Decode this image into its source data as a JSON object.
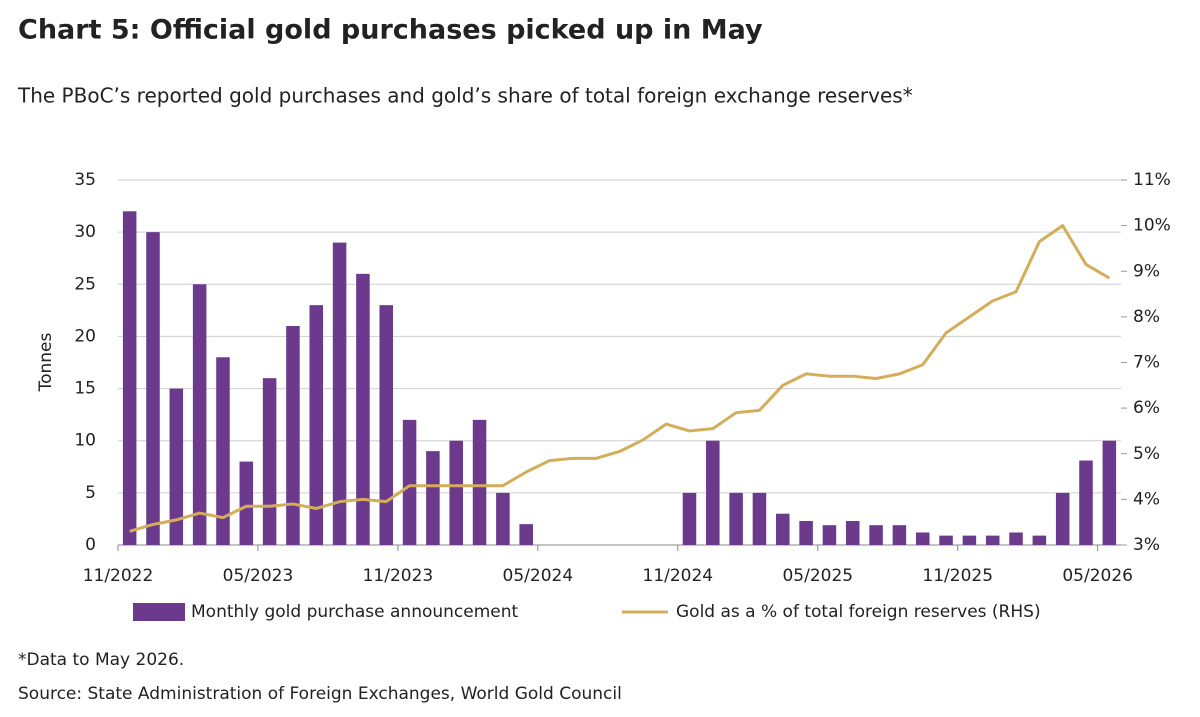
{
  "chart_data": {
    "type": "bar_line",
    "title": "Chart 5: Official gold purchases picked up in May",
    "subtitle": "The PBoC’s reported gold purchases and gold’s share of total foreign exchange reserves*",
    "y_label": "Tonnes",
    "footnote": "*Data to May 2026.",
    "source": "Source: State Administration of Foreign Exchanges, World Gold Council",
    "categories": [
      "11/2022",
      null,
      null,
      null,
      null,
      null,
      "05/2023",
      null,
      null,
      null,
      null,
      null,
      "11/2023",
      null,
      null,
      null,
      null,
      null,
      "05/2024",
      null,
      null,
      null,
      null,
      null,
      "11/2024",
      null,
      null,
      null,
      null,
      null,
      "05/2025",
      null,
      null,
      null,
      null,
      null,
      "11/2025",
      null,
      null,
      null,
      null,
      null,
      "05/2026"
    ],
    "series": [
      {
        "name": "Monthly gold purchase announcement",
        "type": "bar",
        "color": "#6b3a8c",
        "values": [
          32,
          30,
          15,
          25,
          18,
          8,
          16,
          21,
          23,
          29,
          26,
          23,
          12,
          9,
          10,
          12,
          5,
          2,
          0,
          0,
          0,
          0,
          0,
          0,
          5,
          10,
          5,
          5,
          3,
          2.3,
          1.9,
          2.3,
          1.9,
          1.9,
          1.2,
          0.9,
          0.9,
          0.9,
          1.2,
          0.9,
          5,
          8.1,
          10
        ]
      },
      {
        "name": "Gold as a % of total foreign reserves (RHS)",
        "type": "line",
        "axis": "y2",
        "color": "#d4ad5a",
        "values": [
          3.3,
          3.45,
          3.55,
          3.7,
          3.6,
          3.85,
          3.85,
          3.9,
          3.8,
          3.95,
          4.0,
          3.95,
          4.3,
          4.3,
          4.3,
          4.3,
          4.3,
          4.6,
          4.85,
          4.9,
          4.9,
          5.05,
          5.3,
          5.65,
          5.5,
          5.55,
          5.9,
          5.95,
          6.5,
          6.75,
          6.7,
          6.7,
          6.65,
          6.75,
          6.95,
          7.65,
          8.0,
          8.35,
          8.55,
          9.65,
          10.0,
          9.15,
          8.85
        ]
      }
    ],
    "ylim": [
      0,
      35
    ],
    "yticks": [
      0,
      5,
      10,
      15,
      20,
      25,
      30,
      35
    ],
    "y2lim": [
      3,
      11
    ],
    "y2ticks": [
      {
        "value": 3,
        "label": "3%"
      },
      {
        "value": 4,
        "label": "4%"
      },
      {
        "value": 5,
        "label": "5%"
      },
      {
        "value": 6,
        "label": "6%"
      },
      {
        "value": 7,
        "label": "7%"
      },
      {
        "value": 8,
        "label": "8%"
      },
      {
        "value": 9,
        "label": "9%"
      },
      {
        "value": 10,
        "label": "10%"
      },
      {
        "value": 11,
        "label": "11%"
      }
    ],
    "grid": true,
    "legend": "bottom"
  }
}
